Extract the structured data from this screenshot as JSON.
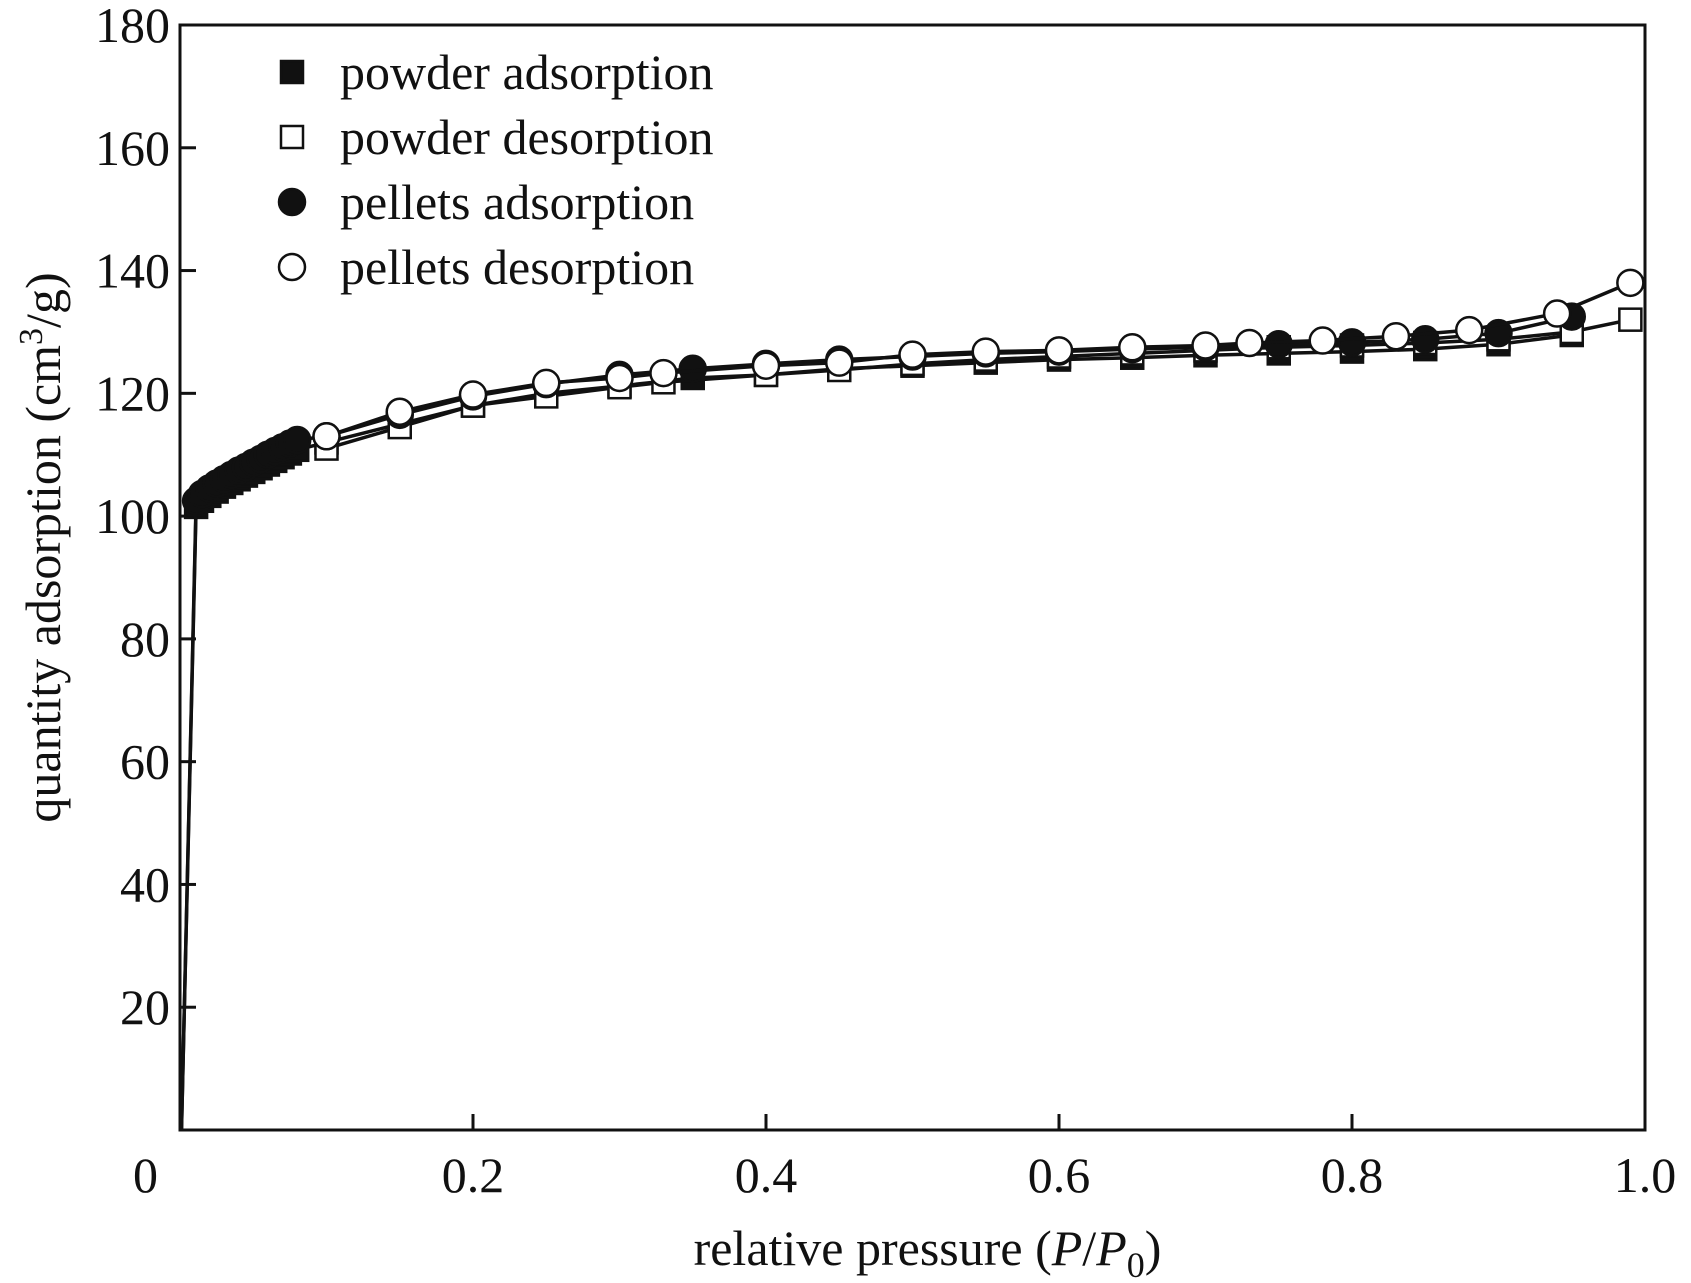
{
  "chart_data": {
    "type": "line",
    "title": "",
    "xlabel": {
      "prefix": "relative pressure (",
      "p": "P",
      "slash": "/",
      "p0": "P",
      "sub": "0",
      "suffix": ")"
    },
    "ylabel": {
      "prefix": "quantity adsorption (cm",
      "sup": "3",
      "suffix": "/g)"
    },
    "xlim": [
      0,
      1.0
    ],
    "ylim": [
      0,
      180
    ],
    "xticks": [
      0,
      0.2,
      0.4,
      0.6,
      0.8,
      1.0
    ],
    "xtick_labels": [
      "0",
      "0.2",
      "0.4",
      "0.6",
      "0.8",
      "1.0"
    ],
    "yticks": [
      20,
      40,
      60,
      80,
      100,
      120,
      140,
      160,
      180
    ],
    "ytick_labels": [
      "20",
      "40",
      "60",
      "80",
      "100",
      "120",
      "140",
      "160",
      "180"
    ],
    "legend_position": "top-left",
    "series": [
      {
        "name": "powder adsorption",
        "marker": "square-filled",
        "color": "#111111",
        "x": [
          0.001,
          0.011,
          0.015,
          0.02,
          0.025,
          0.03,
          0.035,
          0.04,
          0.045,
          0.05,
          0.055,
          0.06,
          0.065,
          0.07,
          0.075,
          0.08,
          0.1,
          0.15,
          0.2,
          0.25,
          0.3,
          0.35,
          0.4,
          0.45,
          0.5,
          0.55,
          0.6,
          0.65,
          0.7,
          0.75,
          0.8,
          0.85,
          0.9,
          0.95
        ],
        "y": [
          0,
          101.5,
          102.5,
          103.3,
          104.0,
          104.8,
          105.4,
          106.0,
          106.6,
          107.2,
          107.8,
          108.4,
          109.0,
          109.6,
          110.2,
          110.8,
          112.0,
          115.0,
          118.0,
          120.0,
          121.2,
          122.5,
          123.0,
          124.0,
          124.5,
          125.0,
          125.5,
          125.8,
          126.2,
          126.5,
          126.8,
          127.2,
          128.0,
          129.5
        ]
      },
      {
        "name": "powder desorption",
        "marker": "square-open",
        "color": "#111111",
        "x": [
          0.1,
          0.15,
          0.2,
          0.25,
          0.3,
          0.33,
          0.4,
          0.45,
          0.5,
          0.55,
          0.6,
          0.65,
          0.7,
          0.75,
          0.8,
          0.85,
          0.9,
          0.95,
          0.99
        ],
        "y": [
          111.0,
          114.5,
          118.0,
          119.5,
          121.0,
          121.8,
          123.0,
          123.8,
          124.8,
          125.5,
          126.0,
          126.5,
          127.0,
          127.5,
          127.8,
          128.2,
          128.8,
          130.0,
          132.0
        ]
      },
      {
        "name": "pellets adsorption",
        "marker": "circle-filled",
        "color": "#111111",
        "x": [
          0.001,
          0.011,
          0.015,
          0.02,
          0.025,
          0.03,
          0.035,
          0.04,
          0.045,
          0.05,
          0.055,
          0.06,
          0.065,
          0.07,
          0.075,
          0.08,
          0.1,
          0.15,
          0.2,
          0.25,
          0.3,
          0.35,
          0.4,
          0.45,
          0.5,
          0.55,
          0.6,
          0.65,
          0.7,
          0.75,
          0.8,
          0.85,
          0.9,
          0.95
        ],
        "y": [
          0,
          102.5,
          103.6,
          104.5,
          105.3,
          106.0,
          106.7,
          107.4,
          108.0,
          108.7,
          109.3,
          110.0,
          110.6,
          111.2,
          111.8,
          112.4,
          113.0,
          116.5,
          119.5,
          121.5,
          123.0,
          124.0,
          124.8,
          125.5,
          126.0,
          126.5,
          126.8,
          127.2,
          127.5,
          128.0,
          128.3,
          128.8,
          129.8,
          132.5
        ]
      },
      {
        "name": "pellets desorption",
        "marker": "circle-open",
        "color": "#111111",
        "x": [
          0.1,
          0.15,
          0.2,
          0.25,
          0.3,
          0.33,
          0.4,
          0.45,
          0.5,
          0.55,
          0.6,
          0.65,
          0.7,
          0.73,
          0.78,
          0.83,
          0.88,
          0.94,
          0.99
        ],
        "y": [
          113.0,
          117.0,
          119.8,
          121.7,
          122.5,
          123.3,
          124.5,
          125.0,
          126.3,
          126.8,
          127.0,
          127.5,
          127.8,
          128.2,
          128.6,
          129.3,
          130.3,
          133.0,
          138.0
        ]
      }
    ]
  }
}
